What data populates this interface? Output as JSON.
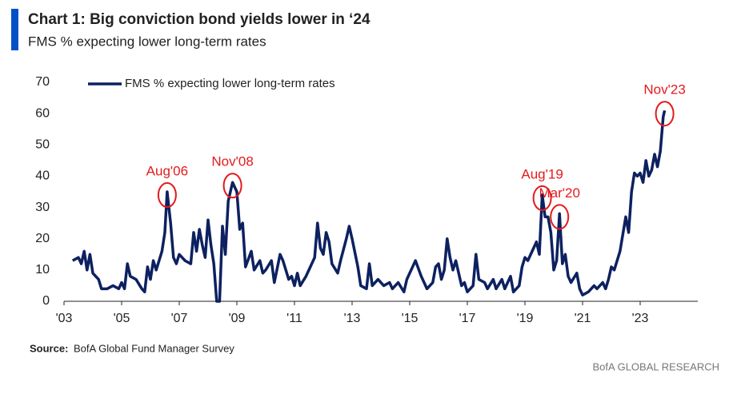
{
  "chart_data": {
    "type": "line",
    "title": "Chart 1: Big conviction bond yields lower in ‘24",
    "subtitle": "FMS % expecting lower long-term rates",
    "source_label": "Source:",
    "source_text": "BofA Global Fund Manager Survey",
    "credit": "BofA GLOBAL RESEARCH",
    "legend": "upper left",
    "x": [
      2003.3,
      2003.5,
      2003.6,
      2003.7,
      2003.8,
      2003.9,
      2004.0,
      2004.2,
      2004.3,
      2004.5,
      2004.7,
      2004.9,
      2005.0,
      2005.1,
      2005.2,
      2005.3,
      2005.5,
      2005.7,
      2005.8,
      2005.9,
      2006.0,
      2006.1,
      2006.2,
      2006.4,
      2006.5,
      2006.58,
      2006.7,
      2006.8,
      2006.9,
      2007.0,
      2007.2,
      2007.4,
      2007.5,
      2007.6,
      2007.7,
      2007.8,
      2007.9,
      2008.0,
      2008.1,
      2008.2,
      2008.3,
      2008.4,
      2008.5,
      2008.6,
      2008.7,
      2008.85,
      2009.0,
      2009.1,
      2009.2,
      2009.3,
      2009.5,
      2009.6,
      2009.8,
      2009.9,
      2010.0,
      2010.2,
      2010.3,
      2010.5,
      2010.6,
      2010.8,
      2010.9,
      2011.0,
      2011.1,
      2011.2,
      2011.4,
      2011.5,
      2011.7,
      2011.8,
      2011.9,
      2012.0,
      2012.1,
      2012.2,
      2012.3,
      2012.5,
      2012.6,
      2012.8,
      2012.9,
      2013.0,
      2013.2,
      2013.3,
      2013.5,
      2013.6,
      2013.7,
      2013.9,
      2014.1,
      2014.3,
      2014.4,
      2014.6,
      2014.8,
      2014.9,
      2015.1,
      2015.2,
      2015.4,
      2015.6,
      2015.8,
      2015.9,
      2016.0,
      2016.1,
      2016.2,
      2016.3,
      2016.4,
      2016.5,
      2016.6,
      2016.8,
      2016.9,
      2017.0,
      2017.2,
      2017.3,
      2017.4,
      2017.6,
      2017.7,
      2017.9,
      2018.0,
      2018.2,
      2018.3,
      2018.5,
      2018.6,
      2018.8,
      2018.9,
      2019.0,
      2019.1,
      2019.3,
      2019.4,
      2019.5,
      2019.6,
      2019.7,
      2019.8,
      2019.9,
      2020.0,
      2020.1,
      2020.2,
      2020.3,
      2020.4,
      2020.5,
      2020.6,
      2020.8,
      2020.9,
      2021.0,
      2021.2,
      2021.4,
      2021.5,
      2021.7,
      2021.8,
      2021.9,
      2022.0,
      2022.1,
      2022.3,
      2022.5,
      2022.6,
      2022.7,
      2022.8,
      2022.9,
      2023.0,
      2023.1,
      2023.2,
      2023.3,
      2023.4,
      2023.5,
      2023.6,
      2023.7,
      2023.8,
      2023.85
    ],
    "series": [
      {
        "name": "FMS % expecting lower long-term rates",
        "color": "#0d2160",
        "values": [
          13,
          14,
          12,
          16,
          10,
          15,
          9,
          7,
          4,
          4,
          5,
          4,
          6,
          4,
          12,
          8,
          7,
          4,
          3,
          11,
          7,
          13,
          10,
          16,
          22,
          35,
          25,
          14,
          12,
          15,
          13,
          12,
          22,
          16,
          23,
          18,
          14,
          26,
          18,
          12,
          0,
          0,
          24,
          15,
          32,
          38,
          35,
          23,
          25,
          11,
          16,
          10,
          13,
          9,
          10,
          13,
          6,
          15,
          13,
          7,
          8,
          5,
          9,
          5,
          8,
          10,
          14,
          25,
          17,
          15,
          22,
          19,
          12,
          9,
          13,
          20,
          24,
          20,
          11,
          5,
          4,
          12,
          5,
          7,
          5,
          6,
          4,
          6,
          3,
          7,
          11,
          13,
          8,
          4,
          6,
          11,
          12,
          7,
          10,
          20,
          14,
          10,
          13,
          5,
          6,
          3,
          5,
          15,
          7,
          6,
          4,
          7,
          4,
          7,
          4,
          8,
          3,
          5,
          11,
          14,
          13,
          17,
          19,
          15,
          34,
          27,
          27,
          22,
          10,
          13,
          28,
          12,
          15,
          8,
          6,
          9,
          4,
          2,
          3,
          5,
          4,
          6,
          4,
          7,
          11,
          10,
          16,
          27,
          22,
          35,
          41,
          40,
          41,
          38,
          45,
          40,
          42,
          47,
          43,
          48,
          59,
          61
        ]
      }
    ],
    "annotations": [
      {
        "text": "Aug'06",
        "x": 2006.58,
        "y": 35,
        "color": "#e41a1c"
      },
      {
        "text": "Nov'08",
        "x": 2008.85,
        "y": 38,
        "color": "#e41a1c"
      },
      {
        "text": "Aug'19",
        "x": 2019.6,
        "y": 34,
        "color": "#e41a1c"
      },
      {
        "text": "Mar'20",
        "x": 2020.2,
        "y": 28,
        "color": "#e41a1c"
      },
      {
        "text": "Nov'23",
        "x": 2023.85,
        "y": 61,
        "color": "#e41a1c"
      }
    ],
    "xlim": [
      2003,
      2025
    ],
    "xticks": [
      {
        "value": 2003,
        "label": "'03"
      },
      {
        "value": 2005,
        "label": "'05"
      },
      {
        "value": 2007,
        "label": "'07"
      },
      {
        "value": 2009,
        "label": "'09"
      },
      {
        "value": 2011,
        "label": "'11"
      },
      {
        "value": 2013,
        "label": "'13"
      },
      {
        "value": 2015,
        "label": "'15"
      },
      {
        "value": 2017,
        "label": "'17"
      },
      {
        "value": 2019,
        "label": "'19"
      },
      {
        "value": 2021,
        "label": "'21"
      },
      {
        "value": 2023,
        "label": "'23"
      }
    ],
    "ylim": [
      0,
      70
    ],
    "yticks": [
      0,
      10,
      20,
      30,
      40,
      50,
      60,
      70
    ],
    "grid": false
  }
}
